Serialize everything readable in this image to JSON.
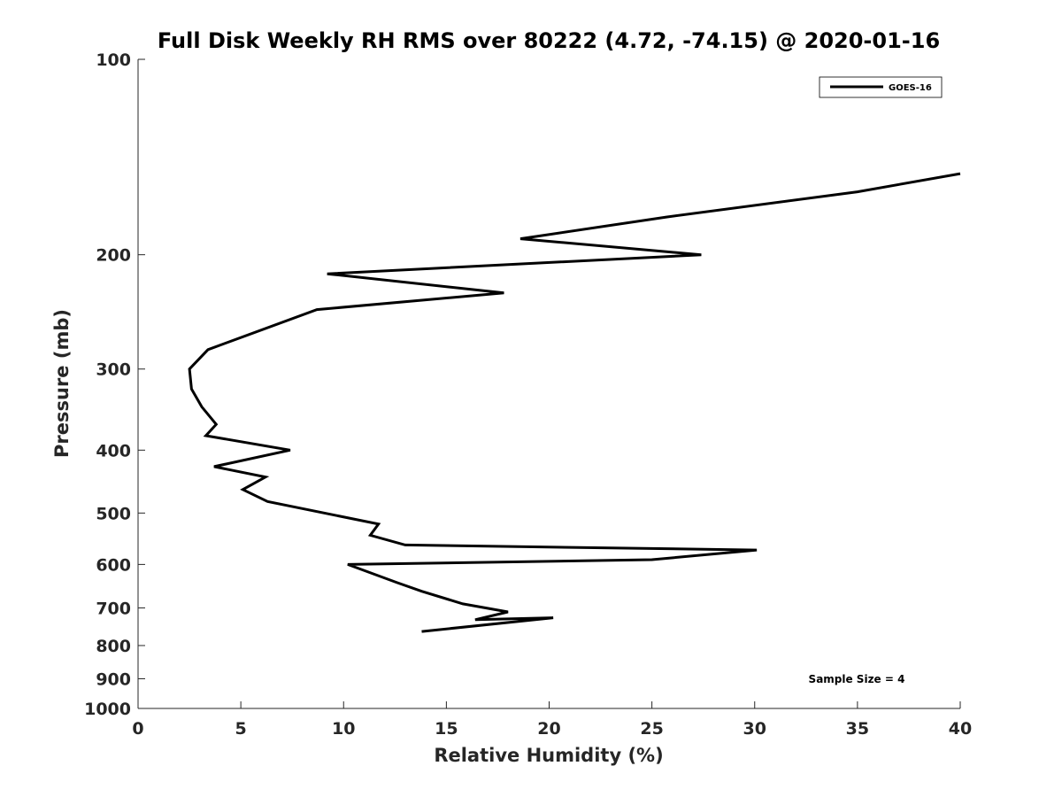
{
  "chart_data": {
    "type": "line",
    "title": "Full Disk Weekly RH RMS over 80222 (4.72, -74.15) @ 2020-01-16",
    "xlabel": "Relative Humidity (%)",
    "ylabel": "Pressure (mb)",
    "xlim": [
      0,
      40
    ],
    "ylim": [
      100,
      1000
    ],
    "yscale": "log",
    "y_reversed": true,
    "xticks": [
      0,
      5,
      10,
      15,
      20,
      25,
      30,
      35,
      40
    ],
    "yticks": [
      100,
      200,
      300,
      400,
      500,
      600,
      700,
      800,
      900,
      1000
    ],
    "legend": {
      "position": "top-right",
      "entries": [
        "GOES-16"
      ]
    },
    "annotation": "Sample Size = 4",
    "series": [
      {
        "name": "GOES-16",
        "color": "#000000",
        "x": [
          40.0,
          35.0,
          25.7,
          18.6,
          27.4,
          9.2,
          17.8,
          8.7,
          3.4,
          2.5,
          2.6,
          3.1,
          3.8,
          3.3,
          7.4,
          3.7,
          6.2,
          5.1,
          6.3,
          11.7,
          11.3,
          13.0,
          30.1,
          25.0,
          10.2,
          12.6,
          13.8,
          15.8,
          18.0,
          16.4,
          20.2,
          13.8
        ],
        "y": [
          150,
          160,
          175,
          189,
          200,
          214,
          229,
          243,
          280,
          300,
          322,
          343,
          365,
          380,
          400,
          424,
          440,
          460,
          480,
          520,
          541,
          560,
          570,
          590,
          600,
          640,
          660,
          690,
          710,
          730,
          725,
          761
        ]
      }
    ]
  }
}
